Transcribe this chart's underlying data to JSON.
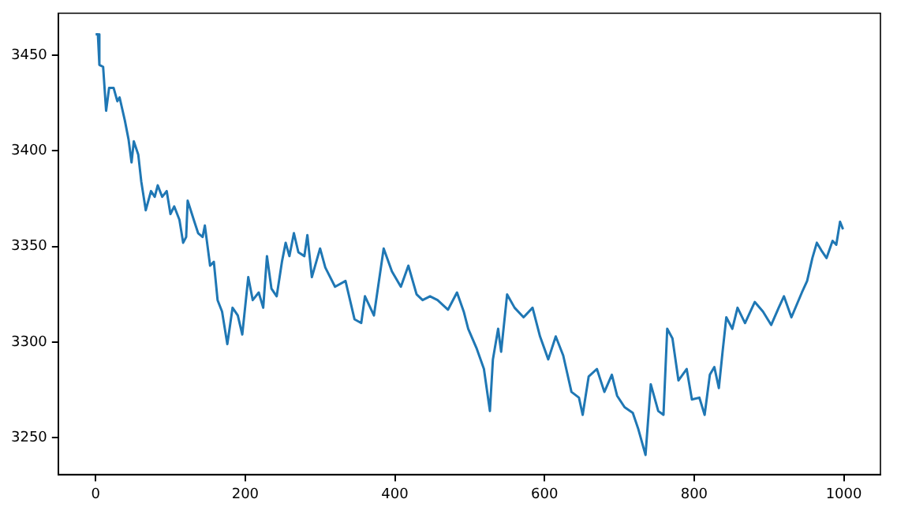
{
  "chart_data": {
    "type": "line",
    "xlim": [
      -50,
      1049
    ],
    "ylim": [
      3230.6,
      3472
    ],
    "xticks": [
      0,
      200,
      400,
      600,
      800,
      1000
    ],
    "yticks": [
      3250,
      3300,
      3350,
      3400,
      3450
    ],
    "grid": false,
    "legend": false,
    "marker": "none",
    "line_style": "solid",
    "series": [
      {
        "color": "#1f77b4",
        "x": [
          0,
          3,
          5,
          10,
          14,
          18,
          24,
          29,
          32,
          39,
          44,
          48,
          51,
          57,
          61,
          67,
          74,
          79,
          83,
          89,
          95,
          100,
          105,
          112,
          117,
          121,
          123,
          132,
          137,
          143,
          146,
          153,
          158,
          163,
          169,
          176,
          179,
          183,
          190,
          196,
          204,
          210,
          218,
          224,
          229,
          235,
          242,
          249,
          254,
          259,
          265,
          271,
          279,
          283,
          289,
          300,
          307,
          320,
          334,
          346,
          355,
          360,
          372,
          385,
          396,
          408,
          418,
          429,
          437,
          447,
          457,
          471,
          483,
          492,
          498,
          509,
          519,
          527,
          531,
          538,
          542,
          550,
          560,
          572,
          584,
          594,
          605,
          615,
          625,
          636,
          646,
          651,
          659,
          670,
          680,
          690,
          697,
          707,
          718,
          725,
          735,
          742,
          752,
          759,
          764,
          771,
          779,
          790,
          797,
          807,
          814,
          821,
          827,
          833,
          838,
          843,
          851,
          858,
          868,
          881,
          892,
          903,
          913,
          920,
          930,
          944,
          951,
          958,
          964,
          970,
          977,
          985,
          990,
          995,
          999
        ],
        "values": [
          3461,
          3461,
          3445,
          3444,
          3421,
          3433,
          3433,
          3426,
          3428,
          3416,
          3406,
          3394,
          3405,
          3398,
          3384,
          3369,
          3379,
          3376,
          3382,
          3376,
          3379,
          3367,
          3371,
          3364,
          3352,
          3355,
          3374,
          3363,
          3357,
          3355,
          3361,
          3340,
          3342,
          3322,
          3316,
          3299,
          3307,
          3318,
          3314,
          3304,
          3334,
          3322,
          3326,
          3318,
          3345,
          3328,
          3324,
          3342,
          3352,
          3345,
          3357,
          3347,
          3345,
          3356,
          3334,
          3349,
          3339,
          3329,
          3332,
          3312,
          3310,
          3324,
          3314,
          3349,
          3337,
          3329,
          3340,
          3325,
          3322,
          3324,
          3322,
          3317,
          3326,
          3316,
          3307,
          3297,
          3286,
          3264,
          3291,
          3307,
          3295,
          3325,
          3318,
          3313,
          3318,
          3303,
          3291,
          3303,
          3293,
          3274,
          3271,
          3262,
          3282,
          3286,
          3274,
          3283,
          3272,
          3266,
          3263,
          3255,
          3241,
          3278,
          3264,
          3262,
          3307,
          3302,
          3280,
          3286,
          3270,
          3271,
          3262,
          3283,
          3287,
          3276,
          3295,
          3313,
          3307,
          3318,
          3310,
          3321,
          3316,
          3309,
          3318,
          3324,
          3313,
          3326,
          3332,
          3344,
          3352,
          3348,
          3344,
          3353,
          3351,
          3363,
          3359
        ]
      }
    ]
  }
}
